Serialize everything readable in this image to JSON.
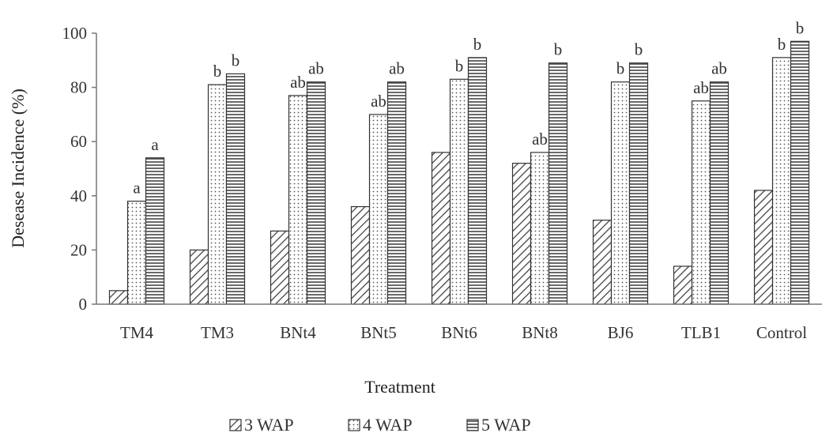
{
  "chart_data": {
    "type": "bar",
    "xlabel": "Treatment",
    "ylabel": "Desease Incidence (%)",
    "ylim": [
      0,
      100
    ],
    "yticks": [
      0,
      20,
      40,
      60,
      80,
      100
    ],
    "categories": [
      "TM4",
      "TM3",
      "BNt4",
      "BNt5",
      "BNt6",
      "BNt8",
      "BJ6",
      "TLB1",
      "Control"
    ],
    "series": [
      {
        "name": "3 WAP",
        "pattern": "diagonal-hatch",
        "values": [
          5,
          20,
          27,
          36,
          56,
          52,
          31,
          14,
          42
        ],
        "labels": [
          "",
          "",
          "",
          "",
          "",
          "",
          "",
          "",
          ""
        ]
      },
      {
        "name": "4 WAP",
        "pattern": "dotted",
        "values": [
          38,
          81,
          77,
          70,
          83,
          56,
          82,
          75,
          91
        ],
        "labels": [
          "a",
          "b",
          "ab",
          "ab",
          "b",
          "ab",
          "b",
          "ab",
          "b"
        ]
      },
      {
        "name": "5 WAP",
        "pattern": "horizontal-stripes",
        "values": [
          54,
          85,
          82,
          82,
          91,
          89,
          89,
          82,
          97
        ],
        "labels": [
          "a",
          "b",
          "ab",
          "ab",
          "b",
          "b",
          "b",
          "ab",
          "b"
        ]
      }
    ],
    "grid": false,
    "legend_position": "bottom-center",
    "colors": {
      "bar_stroke": "#333333",
      "hatch": "#444444",
      "axis": "#555555",
      "text": "#333333"
    }
  }
}
